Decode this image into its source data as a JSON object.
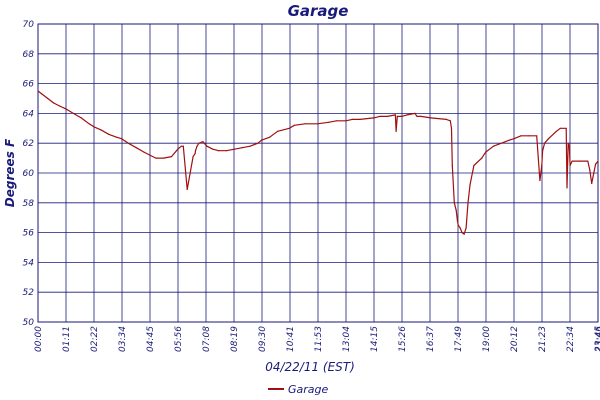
{
  "chart_data": {
    "type": "line",
    "title": "Garage",
    "xlabel": "04/22/11 (EST)",
    "ylabel": "Degrees F",
    "ylim": [
      50,
      70
    ],
    "yticks": [
      50,
      52,
      54,
      56,
      58,
      60,
      62,
      64,
      66,
      68,
      70
    ],
    "xticks": [
      "00:00",
      "01:11",
      "02:22",
      "03:34",
      "04:45",
      "05:56",
      "07:08",
      "08:19",
      "09:30",
      "10:41",
      "11:53",
      "13:04",
      "14:15",
      "15:26",
      "16:37",
      "17:49",
      "19:00",
      "20:12",
      "21:23",
      "22:34",
      "23:45",
      "23:46"
    ],
    "xlim": [
      0,
      1426
    ],
    "grid": true,
    "legend_position": "bottom-center",
    "series": [
      {
        "name": "Garage",
        "color": "#a01010",
        "x": [
          0,
          10,
          25,
          40,
          55,
          71,
          90,
          110,
          130,
          142,
          160,
          180,
          200,
          213,
          230,
          250,
          270,
          285,
          300,
          320,
          340,
          356,
          365,
          370,
          380,
          395,
          400,
          401,
          405,
          410,
          420,
          430,
          445,
          460,
          480,
          500,
          520,
          540,
          560,
          569,
          590,
          610,
          640,
          653,
          680,
          712,
          740,
          760,
          784,
          800,
          820,
          855,
          870,
          890,
          910,
          912,
          915,
          926,
          940,
          960,
          965,
          975,
          1000,
          1040,
          1050,
          1053,
          1055,
          1060,
          1065,
          1068,
          1070,
          1075,
          1080,
          1085,
          1090,
          1095,
          1100,
          1110,
          1130,
          1140,
          1160,
          1180,
          1200,
          1212,
          1230,
          1250,
          1270,
          1278,
          1283,
          1285,
          1290,
          1300,
          1320,
          1330,
          1345,
          1347,
          1350,
          1353,
          1355,
          1360,
          1380,
          1400,
          1405,
          1410,
          1420,
          1426
        ],
        "values": [
          65.5,
          65.3,
          65.0,
          64.7,
          64.5,
          64.3,
          64.0,
          63.7,
          63.3,
          63.1,
          62.9,
          62.6,
          62.4,
          62.3,
          62.0,
          61.7,
          61.4,
          61.2,
          61.0,
          61.0,
          61.1,
          61.6,
          61.8,
          61.8,
          58.9,
          61.1,
          61.3,
          61.5,
          61.8,
          62.0,
          62.1,
          61.8,
          61.6,
          61.5,
          61.5,
          61.6,
          61.7,
          61.8,
          62.0,
          62.2,
          62.4,
          62.8,
          63.0,
          63.2,
          63.3,
          63.3,
          63.4,
          63.5,
          63.5,
          63.6,
          63.6,
          63.7,
          63.8,
          63.8,
          63.9,
          62.8,
          63.8,
          63.8,
          63.9,
          64.0,
          63.8,
          63.8,
          63.7,
          63.6,
          63.5,
          63.0,
          60.5,
          58.0,
          57.5,
          56.8,
          56.5,
          56.3,
          56.0,
          55.9,
          56.3,
          58.0,
          59.2,
          60.5,
          61.0,
          61.4,
          61.8,
          62.0,
          62.2,
          62.3,
          62.5,
          62.5,
          62.5,
          59.5,
          60.5,
          61.5,
          62.0,
          62.3,
          62.8,
          63.0,
          63.0,
          59.0,
          62.0,
          61.8,
          60.5,
          60.8,
          60.8,
          60.8,
          60.2,
          59.3,
          60.6,
          60.8
        ]
      }
    ]
  }
}
